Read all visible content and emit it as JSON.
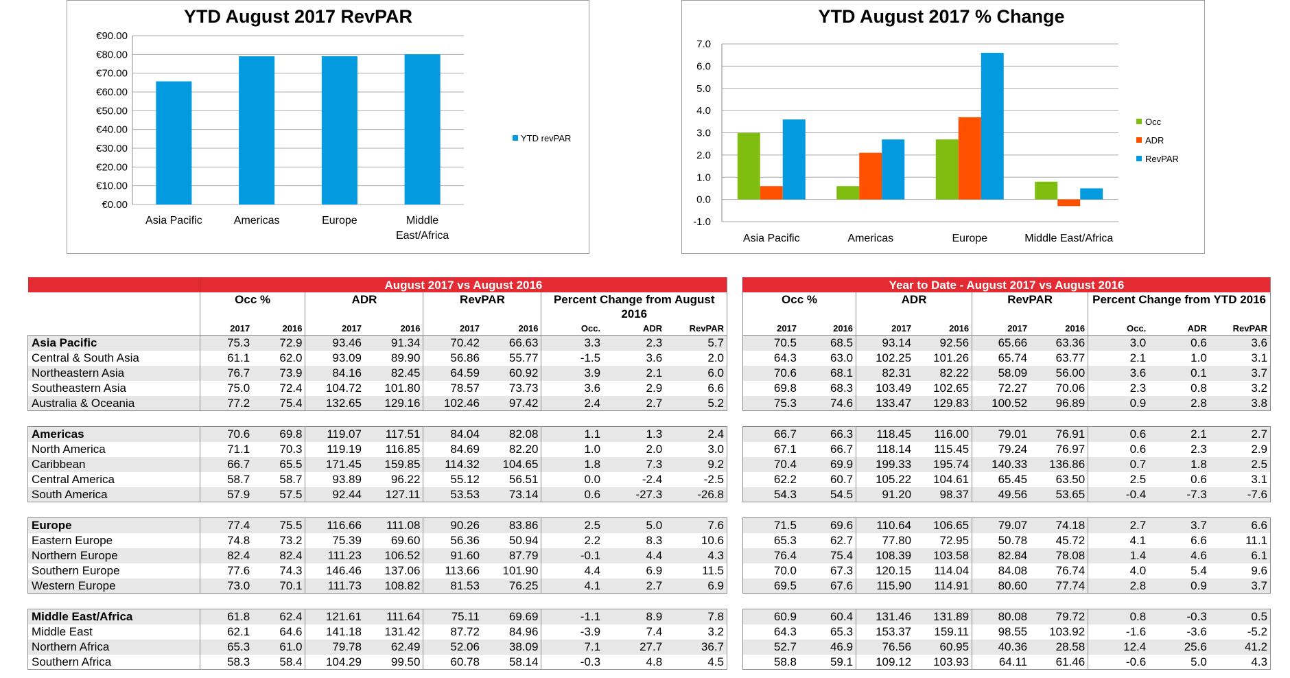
{
  "chart_data": [
    {
      "type": "bar",
      "title": "YTD August 2017 RevPAR",
      "categories": [
        "Asia Pacific",
        "Americas",
        "Europe",
        "Middle East/Africa"
      ],
      "category_lines": [
        [
          "Asia Pacific"
        ],
        [
          "Americas"
        ],
        [
          "Europe"
        ],
        [
          "Middle",
          "East/Africa"
        ]
      ],
      "series": [
        {
          "name": "YTD revPAR",
          "values": [
            65.66,
            79.01,
            79.07,
            80.08
          ],
          "color": "#039ae0"
        }
      ],
      "y_ticks": [
        "€90.00",
        "€80.00",
        "€70.00",
        "€60.00",
        "€50.00",
        "€40.00",
        "€30.00",
        "€20.00",
        "€10.00",
        "€0.00"
      ],
      "ylim": [
        0,
        90
      ],
      "grid": true,
      "legend": "right"
    },
    {
      "type": "bar",
      "title": "YTD August 2017 % Change",
      "categories": [
        "Asia Pacific",
        "Americas",
        "Europe",
        "Middle East/Africa"
      ],
      "series": [
        {
          "name": "Occ",
          "values": [
            3.0,
            0.6,
            2.7,
            0.8
          ],
          "color": "#80bd11"
        },
        {
          "name": "ADR",
          "values": [
            0.6,
            2.1,
            3.7,
            -0.3
          ],
          "color": "#ff5000"
        },
        {
          "name": "RevPAR",
          "values": [
            3.6,
            2.7,
            6.6,
            0.5
          ],
          "color": "#039ae0"
        }
      ],
      "y_ticks": [
        "7.0",
        "6.0",
        "5.0",
        "4.0",
        "3.0",
        "2.0",
        "1.0",
        "0.0",
        "-1.0"
      ],
      "ylim": [
        -1,
        7
      ],
      "grid": true,
      "legend": "right"
    }
  ],
  "tables": {
    "left": {
      "title": "August 2017 vs August 2016",
      "groups": [
        "Occ %",
        "ADR",
        "RevPAR",
        "Percent Change from August 2016"
      ],
      "sub": [
        "2017",
        "2016",
        "2017",
        "2016",
        "2017",
        "2016",
        "Occ.",
        "ADR",
        "RevPAR"
      ]
    },
    "right": {
      "title": "Year to Date - August 2017 vs August 2016",
      "groups": [
        "Occ %",
        "ADR",
        "RevPAR",
        "Percent Change from YTD 2016"
      ],
      "sub": [
        "2017",
        "2016",
        "2017",
        "2016",
        "2017",
        "2016",
        "Occ.",
        "ADR",
        "RevPAR"
      ]
    },
    "rows": [
      {
        "name": "Asia Pacific",
        "bold": true,
        "left": [
          "75.3",
          "72.9",
          "93.46",
          "91.34",
          "70.42",
          "66.63",
          "3.3",
          "2.3",
          "5.7"
        ],
        "right": [
          "70.5",
          "68.5",
          "93.14",
          "92.56",
          "65.66",
          "63.36",
          "3.0",
          "0.6",
          "3.6"
        ]
      },
      {
        "name": "Central & South Asia",
        "left": [
          "61.1",
          "62.0",
          "93.09",
          "89.90",
          "56.86",
          "55.77",
          "-1.5",
          "3.6",
          "2.0"
        ],
        "right": [
          "64.3",
          "63.0",
          "102.25",
          "101.26",
          "65.74",
          "63.77",
          "2.1",
          "1.0",
          "3.1"
        ]
      },
      {
        "name": "Northeastern Asia",
        "left": [
          "76.7",
          "73.9",
          "84.16",
          "82.45",
          "64.59",
          "60.92",
          "3.9",
          "2.1",
          "6.0"
        ],
        "right": [
          "70.6",
          "68.1",
          "82.31",
          "82.22",
          "58.09",
          "56.00",
          "3.6",
          "0.1",
          "3.7"
        ]
      },
      {
        "name": "Southeastern Asia",
        "left": [
          "75.0",
          "72.4",
          "104.72",
          "101.80",
          "78.57",
          "73.73",
          "3.6",
          "2.9",
          "6.6"
        ],
        "right": [
          "69.8",
          "68.3",
          "103.49",
          "102.65",
          "72.27",
          "70.06",
          "2.3",
          "0.8",
          "3.2"
        ]
      },
      {
        "name": "Australia & Oceania",
        "left": [
          "77.2",
          "75.4",
          "132.65",
          "129.16",
          "102.46",
          "97.42",
          "2.4",
          "2.7",
          "5.2"
        ],
        "right": [
          "75.3",
          "74.6",
          "133.47",
          "129.83",
          "100.52",
          "96.89",
          "0.9",
          "2.8",
          "3.8"
        ]
      },
      {
        "gap": true
      },
      {
        "name": "Americas",
        "bold": true,
        "left": [
          "70.6",
          "69.8",
          "119.07",
          "117.51",
          "84.04",
          "82.08",
          "1.1",
          "1.3",
          "2.4"
        ],
        "right": [
          "66.7",
          "66.3",
          "118.45",
          "116.00",
          "79.01",
          "76.91",
          "0.6",
          "2.1",
          "2.7"
        ]
      },
      {
        "name": "North America",
        "left": [
          "71.1",
          "70.3",
          "119.19",
          "116.85",
          "84.69",
          "82.20",
          "1.0",
          "2.0",
          "3.0"
        ],
        "right": [
          "67.1",
          "66.7",
          "118.14",
          "115.45",
          "79.24",
          "76.97",
          "0.6",
          "2.3",
          "2.9"
        ]
      },
      {
        "name": "Caribbean",
        "left": [
          "66.7",
          "65.5",
          "171.45",
          "159.85",
          "114.32",
          "104.65",
          "1.8",
          "7.3",
          "9.2"
        ],
        "right": [
          "70.4",
          "69.9",
          "199.33",
          "195.74",
          "140.33",
          "136.86",
          "0.7",
          "1.8",
          "2.5"
        ]
      },
      {
        "name": "Central America",
        "left": [
          "58.7",
          "58.7",
          "93.89",
          "96.22",
          "55.12",
          "56.51",
          "0.0",
          "-2.4",
          "-2.5"
        ],
        "right": [
          "62.2",
          "60.7",
          "105.22",
          "104.61",
          "65.45",
          "63.50",
          "2.5",
          "0.6",
          "3.1"
        ]
      },
      {
        "name": "South America",
        "left": [
          "57.9",
          "57.5",
          "92.44",
          "127.11",
          "53.53",
          "73.14",
          "0.6",
          "-27.3",
          "-26.8"
        ],
        "right": [
          "54.3",
          "54.5",
          "91.20",
          "98.37",
          "49.56",
          "53.65",
          "-0.4",
          "-7.3",
          "-7.6"
        ]
      },
      {
        "gap": true
      },
      {
        "name": "Europe",
        "bold": true,
        "left": [
          "77.4",
          "75.5",
          "116.66",
          "111.08",
          "90.26",
          "83.86",
          "2.5",
          "5.0",
          "7.6"
        ],
        "right": [
          "71.5",
          "69.6",
          "110.64",
          "106.65",
          "79.07",
          "74.18",
          "2.7",
          "3.7",
          "6.6"
        ]
      },
      {
        "name": "Eastern Europe",
        "left": [
          "74.8",
          "73.2",
          "75.39",
          "69.60",
          "56.36",
          "50.94",
          "2.2",
          "8.3",
          "10.6"
        ],
        "right": [
          "65.3",
          "62.7",
          "77.80",
          "72.95",
          "50.78",
          "45.72",
          "4.1",
          "6.6",
          "11.1"
        ]
      },
      {
        "name": "Northern Europe",
        "left": [
          "82.4",
          "82.4",
          "111.23",
          "106.52",
          "91.60",
          "87.79",
          "-0.1",
          "4.4",
          "4.3"
        ],
        "right": [
          "76.4",
          "75.4",
          "108.39",
          "103.58",
          "82.84",
          "78.08",
          "1.4",
          "4.6",
          "6.1"
        ]
      },
      {
        "name": "Southern Europe",
        "left": [
          "77.6",
          "74.3",
          "146.46",
          "137.06",
          "113.66",
          "101.90",
          "4.4",
          "6.9",
          "11.5"
        ],
        "right": [
          "70.0",
          "67.3",
          "120.15",
          "114.04",
          "84.08",
          "76.74",
          "4.0",
          "5.4",
          "9.6"
        ]
      },
      {
        "name": "Western Europe",
        "left": [
          "73.0",
          "70.1",
          "111.73",
          "108.82",
          "81.53",
          "76.25",
          "4.1",
          "2.7",
          "6.9"
        ],
        "right": [
          "69.5",
          "67.6",
          "115.90",
          "114.91",
          "80.60",
          "77.74",
          "2.8",
          "0.9",
          "3.7"
        ]
      },
      {
        "gap": true
      },
      {
        "name": "Middle East/Africa",
        "bold": true,
        "left": [
          "61.8",
          "62.4",
          "121.61",
          "111.64",
          "75.11",
          "69.69",
          "-1.1",
          "8.9",
          "7.8"
        ],
        "right": [
          "60.9",
          "60.4",
          "131.46",
          "131.89",
          "80.08",
          "79.72",
          "0.8",
          "-0.3",
          "0.5"
        ]
      },
      {
        "name": "Middle East",
        "left": [
          "62.1",
          "64.6",
          "141.18",
          "131.42",
          "87.72",
          "84.96",
          "-3.9",
          "7.4",
          "3.2"
        ],
        "right": [
          "64.3",
          "65.3",
          "153.37",
          "159.11",
          "98.55",
          "103.92",
          "-1.6",
          "-3.6",
          "-5.2"
        ]
      },
      {
        "name": "Northern Africa",
        "left": [
          "65.3",
          "61.0",
          "79.78",
          "62.49",
          "52.06",
          "38.09",
          "7.1",
          "27.7",
          "36.7"
        ],
        "right": [
          "52.7",
          "46.9",
          "76.56",
          "60.95",
          "40.36",
          "28.58",
          "12.4",
          "25.6",
          "41.2"
        ]
      },
      {
        "name": "Southern Africa",
        "left": [
          "58.3",
          "58.4",
          "104.29",
          "99.50",
          "60.78",
          "58.14",
          "-0.3",
          "4.8",
          "4.5"
        ],
        "right": [
          "58.8",
          "59.1",
          "109.12",
          "103.93",
          "64.11",
          "61.46",
          "-0.6",
          "5.0",
          "4.3"
        ]
      }
    ]
  }
}
